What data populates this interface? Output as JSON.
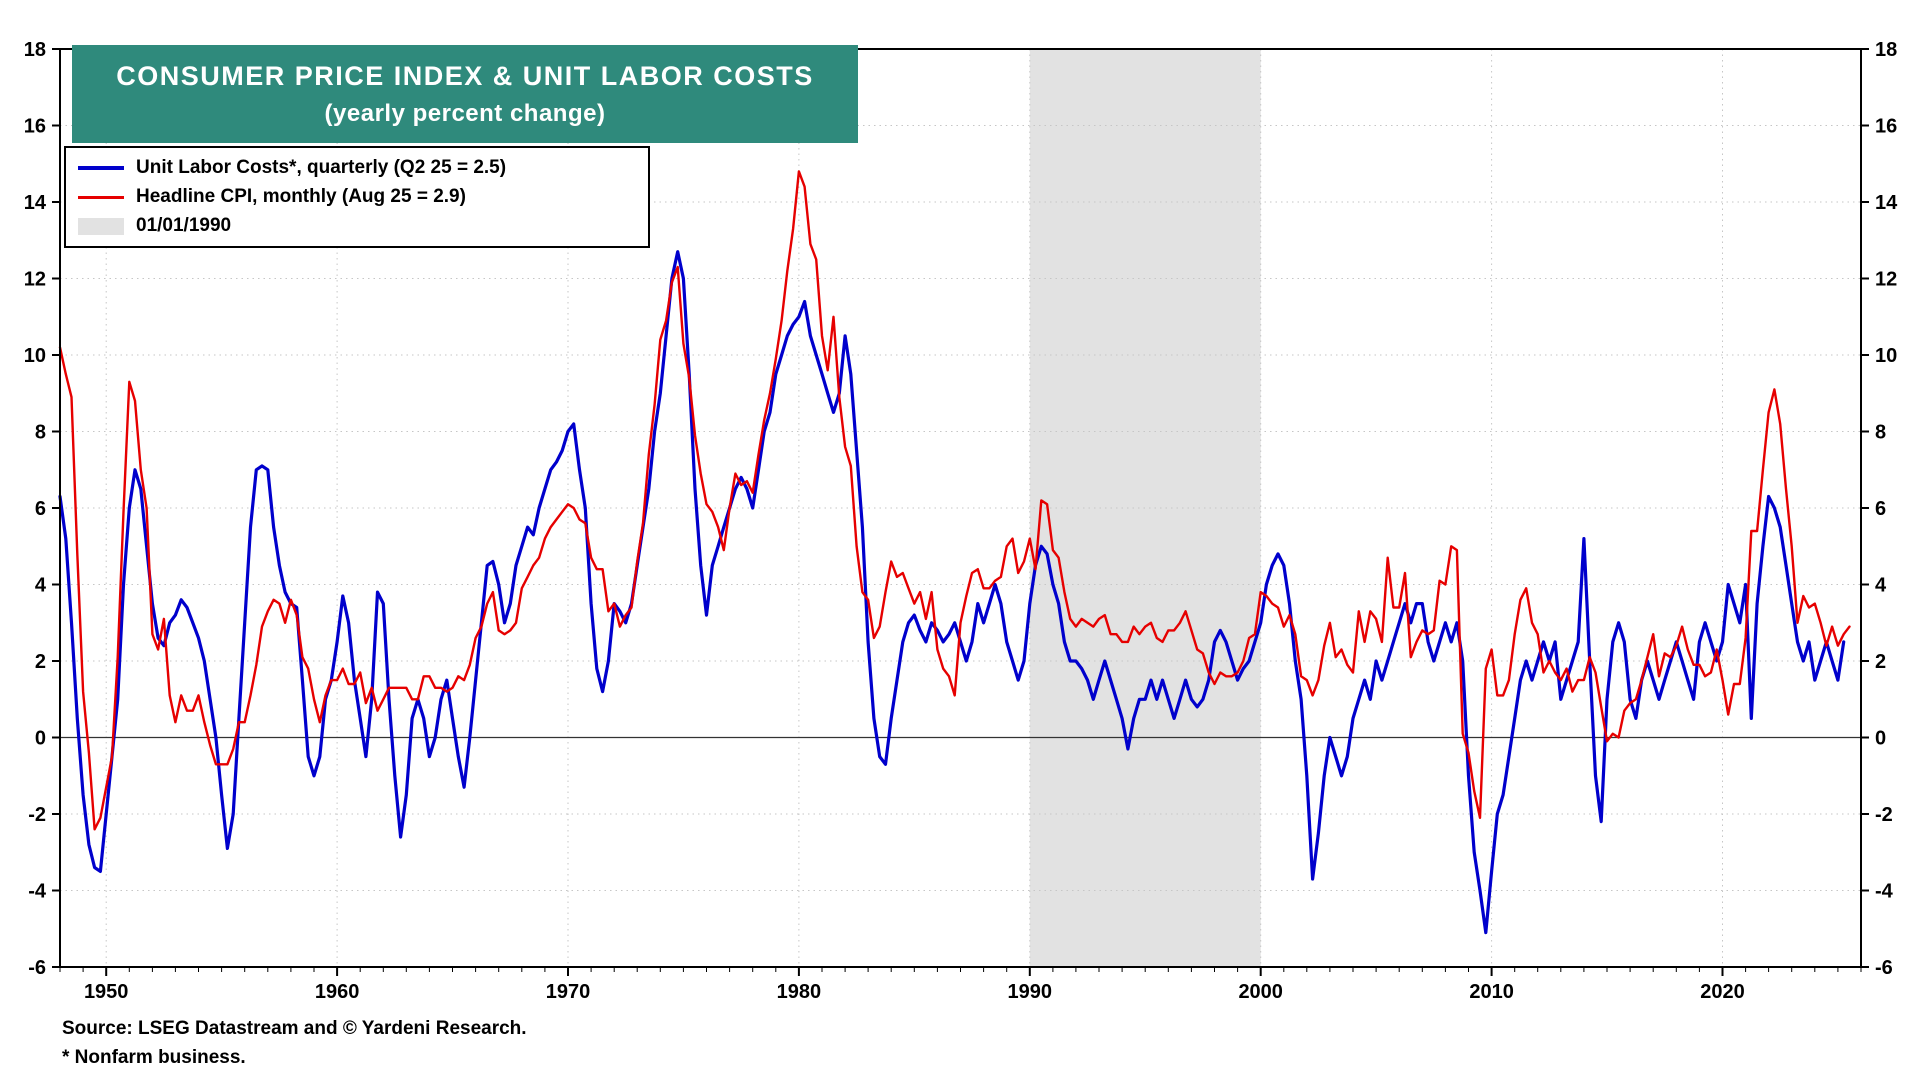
{
  "footer": {
    "source": "Source: LSEG Datastream and © Yardeni Research.",
    "note": "* Nonfarm business."
  },
  "colors": {
    "title_bg": "#2f8a7c",
    "ulc_blue": "#0000cc",
    "cpi_red": "#e60000",
    "shade_gray": "#e2e2e2"
  },
  "chart_data": {
    "type": "line",
    "title": "CONSUMER PRICE INDEX & UNIT LABOR COSTS",
    "subtitle": "(yearly percent change)",
    "legend_position": "top-left",
    "grid": "dotted",
    "x_range": [
      1948,
      2026
    ],
    "y_range": [
      -6,
      18
    ],
    "y_tick_step": 2,
    "x_ticks": [
      1950,
      1960,
      1970,
      1980,
      1990,
      2000,
      2010,
      2020
    ],
    "shaded_region": {
      "from": 1990,
      "to": 2000,
      "color": "#e2e2e2",
      "label": "01/01/1990"
    },
    "series": [
      {
        "id": "ulc",
        "name": "Unit Labor Costs*, quarterly (Q2 25 = 2.5)",
        "color": "#0000cc",
        "stroke_width": 3.2,
        "start": 1948.0,
        "step": 0.25,
        "values": [
          6.3,
          5.2,
          3.0,
          0.5,
          -1.5,
          -2.8,
          -3.4,
          -3.5,
          -2.0,
          -0.5,
          1.0,
          4.0,
          6.0,
          7.0,
          6.5,
          5.0,
          3.5,
          2.6,
          2.4,
          3.0,
          3.2,
          3.6,
          3.4,
          3.0,
          2.6,
          2.0,
          1.0,
          0.0,
          -1.5,
          -2.9,
          -2.0,
          0.5,
          3.0,
          5.5,
          7.0,
          7.1,
          7.0,
          5.5,
          4.5,
          3.8,
          3.5,
          3.4,
          1.5,
          -0.5,
          -1.0,
          -0.5,
          1.0,
          1.5,
          2.5,
          3.7,
          3.0,
          1.5,
          0.5,
          -0.5,
          1.0,
          3.8,
          3.5,
          1.0,
          -1.0,
          -2.6,
          -1.5,
          0.5,
          1.0,
          0.5,
          -0.5,
          0.0,
          1.0,
          1.5,
          0.5,
          -0.5,
          -1.3,
          0.0,
          1.5,
          3.0,
          4.5,
          4.6,
          4.0,
          3.0,
          3.5,
          4.5,
          5.0,
          5.5,
          5.3,
          6.0,
          6.5,
          7.0,
          7.2,
          7.5,
          8.0,
          8.2,
          7.0,
          6.0,
          3.5,
          1.8,
          1.2,
          2.0,
          3.5,
          3.3,
          3.0,
          3.5,
          4.5,
          5.5,
          6.5,
          8.0,
          9.0,
          10.5,
          12.0,
          12.7,
          12.0,
          9.5,
          6.5,
          4.5,
          3.2,
          4.5,
          5.0,
          5.5,
          6.0,
          6.5,
          6.8,
          6.5,
          6.0,
          7.0,
          8.0,
          8.5,
          9.5,
          10.0,
          10.5,
          10.8,
          11.0,
          11.4,
          10.5,
          10.0,
          9.5,
          9.0,
          8.5,
          9.0,
          10.5,
          9.5,
          7.5,
          5.5,
          2.5,
          0.5,
          -0.5,
          -0.7,
          0.5,
          1.5,
          2.5,
          3.0,
          3.2,
          2.8,
          2.5,
          3.0,
          2.8,
          2.5,
          2.7,
          3.0,
          2.5,
          2.0,
          2.5,
          3.5,
          3.0,
          3.5,
          4.0,
          3.5,
          2.5,
          2.0,
          1.5,
          2.0,
          3.5,
          4.5,
          5.0,
          4.8,
          4.0,
          3.5,
          2.5,
          2.0,
          2.0,
          1.8,
          1.5,
          1.0,
          1.5,
          2.0,
          1.5,
          1.0,
          0.5,
          -0.3,
          0.5,
          1.0,
          1.0,
          1.5,
          1.0,
          1.5,
          1.0,
          0.5,
          1.0,
          1.5,
          1.0,
          0.8,
          1.0,
          1.5,
          2.5,
          2.8,
          2.5,
          2.0,
          1.5,
          1.8,
          2.0,
          2.5,
          3.0,
          4.0,
          4.5,
          4.8,
          4.5,
          3.5,
          2.0,
          1.0,
          -1.0,
          -3.7,
          -2.5,
          -1.0,
          0.0,
          -0.5,
          -1.0,
          -0.5,
          0.5,
          1.0,
          1.5,
          1.0,
          2.0,
          1.5,
          2.0,
          2.5,
          3.0,
          3.5,
          3.0,
          3.5,
          3.5,
          2.5,
          2.0,
          2.5,
          3.0,
          2.5,
          3.0,
          2.0,
          -1.0,
          -3.0,
          -4.0,
          -5.1,
          -3.5,
          -2.0,
          -1.5,
          -0.5,
          0.5,
          1.5,
          2.0,
          1.5,
          2.0,
          2.5,
          2.0,
          2.5,
          1.0,
          1.5,
          2.0,
          2.5,
          5.2,
          2.0,
          -1.0,
          -2.2,
          1.0,
          2.5,
          3.0,
          2.5,
          1.0,
          0.5,
          1.5,
          2.0,
          1.5,
          1.0,
          1.5,
          2.0,
          2.5,
          2.0,
          1.5,
          1.0,
          2.5,
          3.0,
          2.5,
          2.0,
          2.5,
          4.0,
          3.5,
          3.0,
          4.0,
          0.5,
          3.5,
          5.0,
          6.3,
          6.0,
          5.5,
          4.5,
          3.5,
          2.5,
          2.0,
          2.5,
          1.5,
          2.0,
          2.5,
          2.0,
          1.5,
          2.5
        ]
      },
      {
        "id": "cpi",
        "name": "Headline CPI, monthly (Aug 25 = 2.9)",
        "color": "#e60000",
        "stroke_width": 2.4,
        "start": 1948.0,
        "step": 0.25,
        "values": [
          10.2,
          9.5,
          8.9,
          4.8,
          1.2,
          -0.4,
          -2.4,
          -2.1,
          -1.3,
          -0.5,
          2.1,
          5.9,
          9.3,
          8.8,
          7.0,
          6.0,
          2.7,
          2.3,
          3.1,
          1.1,
          0.4,
          1.1,
          0.7,
          0.7,
          1.1,
          0.4,
          -0.2,
          -0.7,
          -0.7,
          -0.7,
          -0.3,
          0.4,
          0.4,
          1.1,
          1.9,
          2.9,
          3.3,
          3.6,
          3.5,
          3.0,
          3.6,
          3.2,
          2.1,
          1.8,
          1.0,
          0.4,
          1.1,
          1.5,
          1.5,
          1.8,
          1.4,
          1.4,
          1.7,
          0.9,
          1.3,
          0.7,
          1.0,
          1.3,
          1.3,
          1.3,
          1.3,
          1.0,
          1.0,
          1.6,
          1.6,
          1.3,
          1.3,
          1.2,
          1.3,
          1.6,
          1.5,
          1.9,
          2.6,
          2.9,
          3.5,
          3.8,
          2.8,
          2.7,
          2.8,
          3.0,
          3.9,
          4.2,
          4.5,
          4.7,
          5.2,
          5.5,
          5.7,
          5.9,
          6.1,
          6.0,
          5.7,
          5.6,
          4.7,
          4.4,
          4.4,
          3.3,
          3.5,
          2.9,
          3.2,
          3.4,
          4.6,
          5.6,
          7.4,
          8.7,
          10.4,
          10.9,
          11.9,
          12.3,
          10.3,
          9.4,
          7.9,
          6.9,
          6.1,
          5.9,
          5.5,
          4.9,
          6.0,
          6.9,
          6.6,
          6.7,
          6.4,
          7.4,
          8.3,
          9.0,
          9.9,
          10.9,
          12.2,
          13.3,
          14.8,
          14.4,
          12.9,
          12.5,
          10.5,
          9.6,
          11.0,
          8.9,
          7.6,
          7.1,
          5.0,
          3.8,
          3.6,
          2.6,
          2.9,
          3.8,
          4.6,
          4.2,
          4.3,
          3.9,
          3.5,
          3.8,
          3.1,
          3.8,
          2.3,
          1.8,
          1.6,
          1.1,
          3.0,
          3.7,
          4.3,
          4.4,
          3.9,
          3.9,
          4.1,
          4.2,
          5.0,
          5.2,
          4.3,
          4.6,
          5.2,
          4.4,
          6.2,
          6.1,
          4.9,
          4.7,
          3.8,
          3.1,
          2.9,
          3.1,
          3.0,
          2.9,
          3.1,
          3.2,
          2.7,
          2.7,
          2.5,
          2.5,
          2.9,
          2.7,
          2.9,
          3.0,
          2.6,
          2.5,
          2.8,
          2.8,
          3.0,
          3.3,
          2.8,
          2.3,
          2.2,
          1.7,
          1.4,
          1.7,
          1.6,
          1.6,
          1.7,
          2.0,
          2.6,
          2.7,
          3.8,
          3.7,
          3.5,
          3.4,
          2.9,
          3.2,
          2.7,
          1.6,
          1.5,
          1.1,
          1.5,
          2.4,
          3.0,
          2.1,
          2.3,
          1.9,
          1.7,
          3.3,
          2.5,
          3.3,
          3.1,
          2.5,
          4.7,
          3.4,
          3.4,
          4.3,
          2.1,
          2.5,
          2.8,
          2.7,
          2.8,
          4.1,
          4.0,
          5.0,
          4.9,
          0.1,
          -0.4,
          -1.4,
          -2.1,
          1.8,
          2.3,
          1.1,
          1.1,
          1.5,
          2.7,
          3.6,
          3.9,
          3.0,
          2.7,
          1.7,
          2.0,
          1.7,
          1.5,
          1.8,
          1.2,
          1.5,
          1.5,
          2.1,
          1.7,
          0.8,
          -0.1,
          0.1,
          0.0,
          0.7,
          0.9,
          1.0,
          1.5,
          2.1,
          2.7,
          1.6,
          2.2,
          2.1,
          2.4,
          2.9,
          2.3,
          1.9,
          1.9,
          1.6,
          1.7,
          2.3,
          1.5,
          0.6,
          1.4,
          1.4,
          2.6,
          5.4,
          5.4,
          7.0,
          8.5,
          9.1,
          8.2,
          6.5,
          5.0,
          3.0,
          3.7,
          3.4,
          3.5,
          3.0,
          2.4,
          2.9,
          2.4,
          2.7,
          2.9
        ]
      }
    ]
  }
}
